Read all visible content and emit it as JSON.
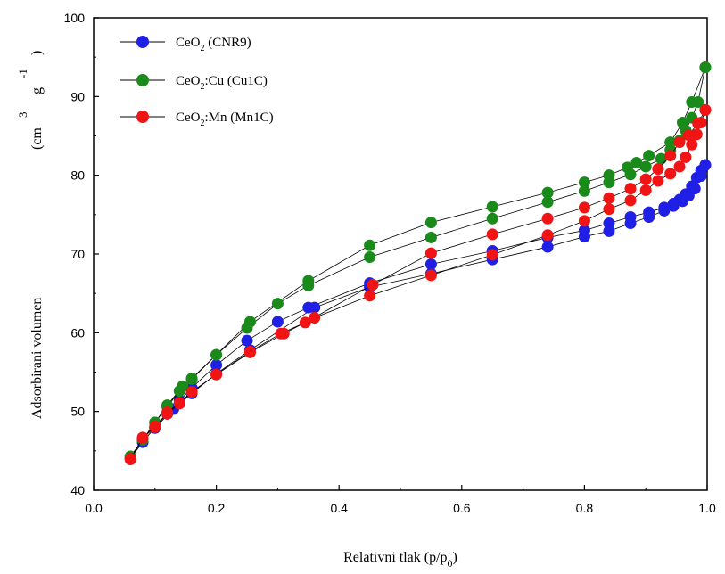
{
  "chart_data": {
    "type": "scatter",
    "xlabel_main": "Relativni tlak (p/p",
    "xlabel_sub": "0",
    "xlabel_close": ")",
    "ylabel_main": "Adsorbirani volumen",
    "ylabel_unit_open": "(cm",
    "ylabel_unit_sup": "3",
    "ylabel_unit_g": "g",
    "ylabel_unit_exp": "-1",
    "ylabel_unit_close": ")",
    "xlim": [
      0.0,
      1.0
    ],
    "ylim": [
      40,
      100
    ],
    "x_ticks": [
      "0.0",
      "0.2",
      "0.4",
      "0.6",
      "0.8",
      "1.0"
    ],
    "x_tick_values": [
      0.0,
      0.2,
      0.4,
      0.6,
      0.8,
      1.0
    ],
    "y_ticks": [
      "40",
      "50",
      "60",
      "70",
      "80",
      "90",
      "100"
    ],
    "y_tick_values": [
      40,
      50,
      60,
      70,
      80,
      90,
      100
    ],
    "grid": false,
    "legend_position": "top-left",
    "series": [
      {
        "name_main": "CeO",
        "name_sub": "2",
        "name_rest": " (CNR9)",
        "color": "#1f1fe6",
        "adsorption": [
          [
            0.06,
            44.1
          ],
          [
            0.08,
            46.1
          ],
          [
            0.1,
            48.0
          ],
          [
            0.12,
            49.7
          ],
          [
            0.14,
            51.4
          ],
          [
            0.16,
            53.0
          ],
          [
            0.2,
            55.9
          ],
          [
            0.25,
            59.0
          ],
          [
            0.3,
            61.4
          ],
          [
            0.35,
            63.2
          ],
          [
            0.45,
            66.3
          ],
          [
            0.55,
            68.7
          ],
          [
            0.65,
            70.4
          ],
          [
            0.74,
            72.1
          ],
          [
            0.8,
            73.0
          ],
          [
            0.84,
            73.9
          ],
          [
            0.875,
            74.7
          ],
          [
            0.905,
            75.3
          ],
          [
            0.93,
            75.9
          ],
          [
            0.945,
            76.4
          ],
          [
            0.955,
            76.9
          ],
          [
            0.965,
            77.6
          ],
          [
            0.975,
            78.6
          ],
          [
            0.983,
            79.7
          ],
          [
            0.99,
            80.6
          ],
          [
            0.997,
            81.3
          ]
        ],
        "desorption": [
          [
            0.997,
            81.3
          ],
          [
            0.99,
            79.9
          ],
          [
            0.98,
            78.3
          ],
          [
            0.97,
            77.4
          ],
          [
            0.96,
            76.7
          ],
          [
            0.945,
            76.1
          ],
          [
            0.93,
            75.5
          ],
          [
            0.905,
            74.7
          ],
          [
            0.875,
            73.9
          ],
          [
            0.84,
            72.9
          ],
          [
            0.8,
            72.2
          ],
          [
            0.74,
            70.9
          ],
          [
            0.65,
            69.3
          ],
          [
            0.55,
            67.5
          ],
          [
            0.45,
            65.8
          ],
          [
            0.36,
            63.2
          ],
          [
            0.255,
            57.8
          ],
          [
            0.2,
            54.8
          ],
          [
            0.16,
            52.3
          ],
          [
            0.13,
            50.3
          ],
          [
            0.1,
            47.9
          ],
          [
            0.08,
            46.2
          ],
          [
            0.06,
            44.0
          ]
        ]
      },
      {
        "name_main": "CeO",
        "name_sub": "2",
        "name_rest": ":Cu (Cu1C)",
        "color": "#1a8a1a",
        "adsorption": [
          [
            0.06,
            44.2
          ],
          [
            0.08,
            46.4
          ],
          [
            0.1,
            48.6
          ],
          [
            0.12,
            50.6
          ],
          [
            0.14,
            52.6
          ],
          [
            0.16,
            54.2
          ],
          [
            0.2,
            57.2
          ],
          [
            0.25,
            60.6
          ],
          [
            0.3,
            63.7
          ],
          [
            0.35,
            66.0
          ],
          [
            0.45,
            69.6
          ],
          [
            0.55,
            72.1
          ],
          [
            0.65,
            74.5
          ],
          [
            0.74,
            76.6
          ],
          [
            0.8,
            78.0
          ],
          [
            0.84,
            79.1
          ],
          [
            0.875,
            80.1
          ],
          [
            0.9,
            81.1
          ],
          [
            0.925,
            82.1
          ],
          [
            0.94,
            83.2
          ],
          [
            0.955,
            84.4
          ],
          [
            0.965,
            85.7
          ],
          [
            0.975,
            87.3
          ],
          [
            0.985,
            89.3
          ],
          [
            0.997,
            93.7
          ]
        ],
        "desorption": [
          [
            0.997,
            93.7
          ],
          [
            0.975,
            89.3
          ],
          [
            0.96,
            86.7
          ],
          [
            0.94,
            84.2
          ],
          [
            0.905,
            82.5
          ],
          [
            0.885,
            81.6
          ],
          [
            0.87,
            81.0
          ],
          [
            0.84,
            80.0
          ],
          [
            0.8,
            79.1
          ],
          [
            0.74,
            77.8
          ],
          [
            0.65,
            76.0
          ],
          [
            0.55,
            74.0
          ],
          [
            0.45,
            71.1
          ],
          [
            0.35,
            66.6
          ],
          [
            0.255,
            61.4
          ],
          [
            0.2,
            57.2
          ],
          [
            0.16,
            54.1
          ],
          [
            0.145,
            53.2
          ],
          [
            0.12,
            50.8
          ],
          [
            0.1,
            48.6
          ],
          [
            0.08,
            46.4
          ],
          [
            0.06,
            44.3
          ]
        ]
      },
      {
        "name_main": "CeO",
        "name_sub": "2",
        "name_rest": ":Mn (Mn1C)",
        "color": "#f01414",
        "adsorption": [
          [
            0.06,
            43.9
          ],
          [
            0.08,
            46.7
          ],
          [
            0.1,
            48.1
          ],
          [
            0.12,
            49.7
          ],
          [
            0.14,
            51.0
          ],
          [
            0.16,
            52.5
          ],
          [
            0.2,
            54.7
          ],
          [
            0.255,
            57.5
          ],
          [
            0.31,
            59.9
          ],
          [
            0.36,
            61.9
          ],
          [
            0.45,
            64.7
          ],
          [
            0.55,
            67.3
          ],
          [
            0.65,
            69.9
          ],
          [
            0.74,
            72.4
          ],
          [
            0.8,
            74.2
          ],
          [
            0.84,
            75.7
          ],
          [
            0.875,
            76.8
          ],
          [
            0.9,
            78.1
          ],
          [
            0.92,
            79.3
          ],
          [
            0.94,
            80.2
          ],
          [
            0.955,
            81.1
          ],
          [
            0.965,
            82.3
          ],
          [
            0.975,
            83.9
          ],
          [
            0.983,
            85.2
          ],
          [
            0.99,
            86.7
          ],
          [
            0.997,
            88.3
          ]
        ],
        "desorption": [
          [
            0.997,
            88.3
          ],
          [
            0.985,
            86.6
          ],
          [
            0.97,
            85.1
          ],
          [
            0.955,
            84.2
          ],
          [
            0.94,
            82.5
          ],
          [
            0.92,
            80.8
          ],
          [
            0.9,
            79.5
          ],
          [
            0.875,
            78.3
          ],
          [
            0.84,
            77.1
          ],
          [
            0.8,
            75.9
          ],
          [
            0.74,
            74.5
          ],
          [
            0.65,
            72.5
          ],
          [
            0.55,
            70.1
          ],
          [
            0.455,
            66.1
          ],
          [
            0.345,
            61.3
          ],
          [
            0.305,
            59.9
          ],
          [
            0.255,
            57.6
          ],
          [
            0.2,
            54.7
          ],
          [
            0.16,
            52.5
          ],
          [
            0.14,
            51.1
          ],
          [
            0.12,
            49.9
          ],
          [
            0.1,
            48.0
          ],
          [
            0.08,
            46.6
          ],
          [
            0.06,
            44.0
          ]
        ]
      }
    ]
  }
}
